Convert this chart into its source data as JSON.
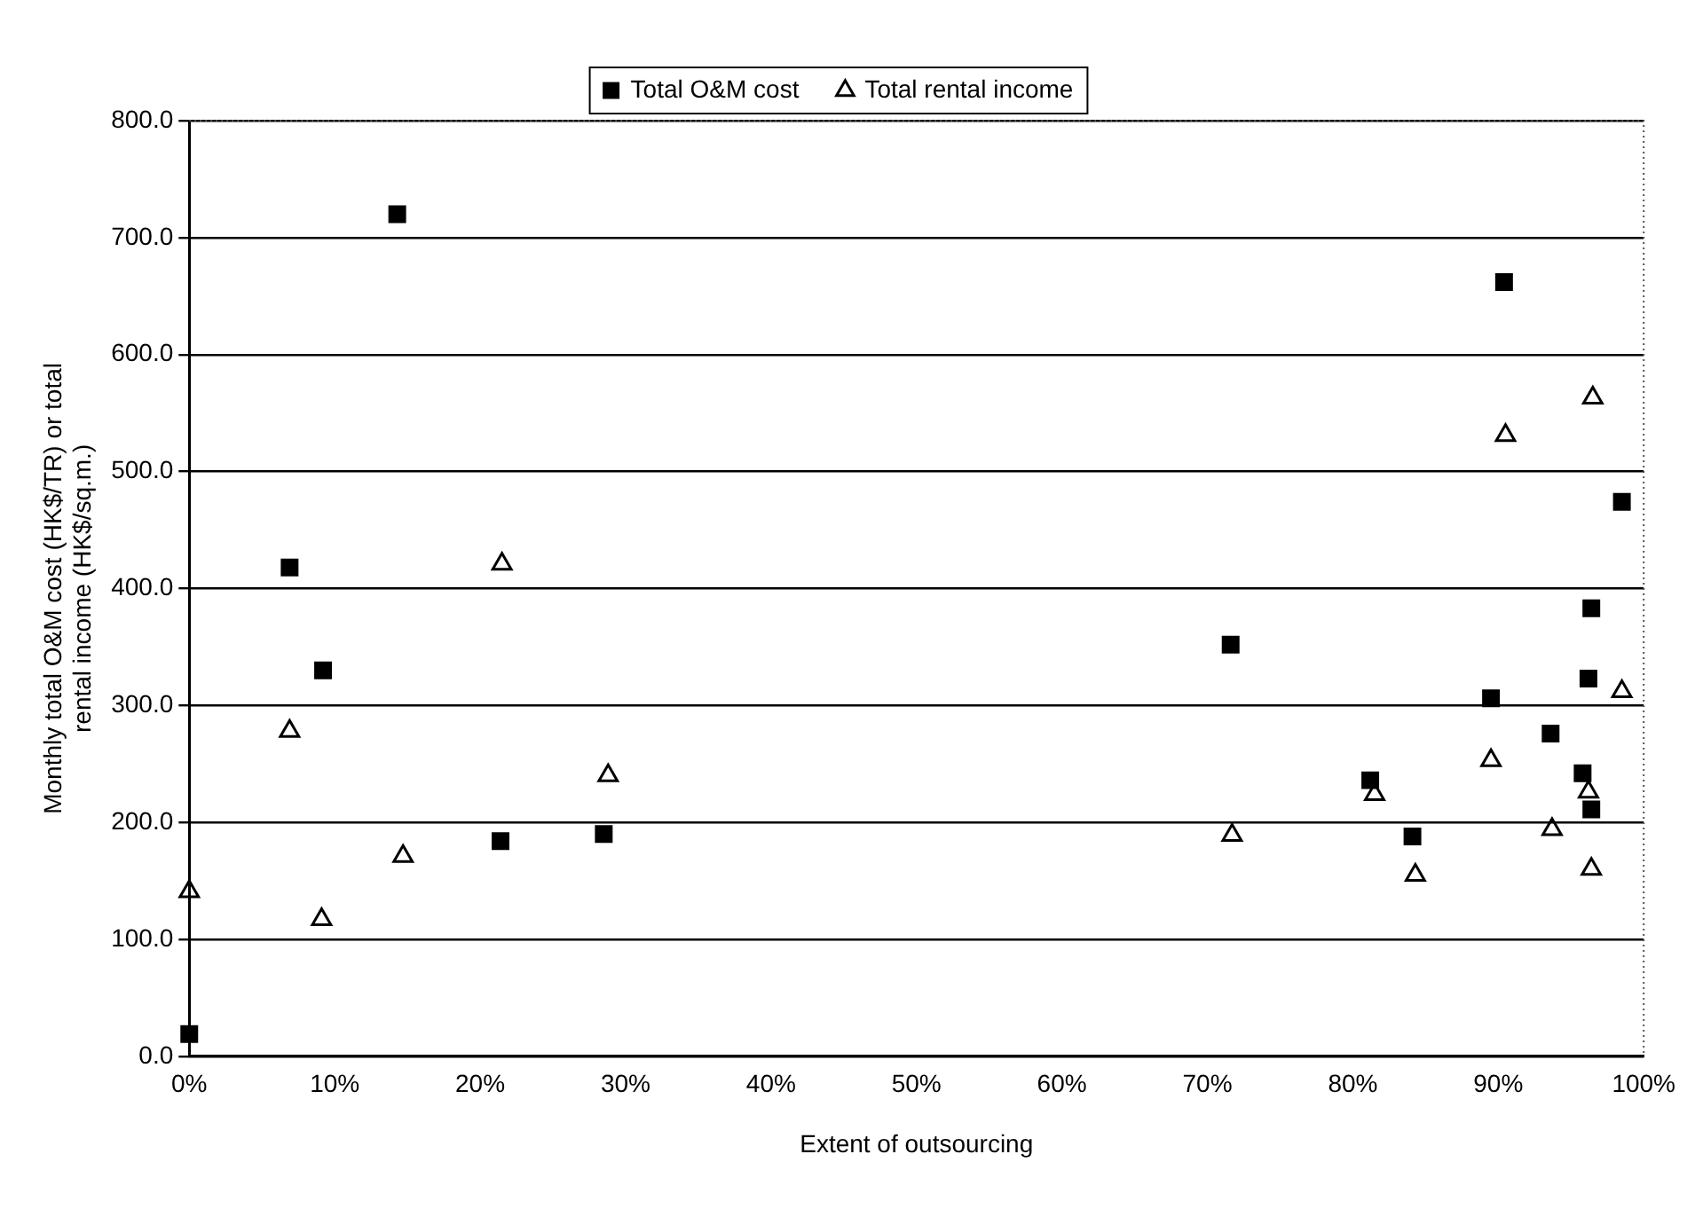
{
  "chart_data": {
    "type": "scatter",
    "xlabel": "Extent of outsourcing",
    "ylabel": "Monthly total O&M cost (HK$/TR) or total rental income (HK$/sq.m.)",
    "series": [
      {
        "name": "Total O&M cost",
        "color": "#000000",
        "marker": "square",
        "x": [
          0,
          6.9,
          9.2,
          14.3,
          21.4,
          28.5,
          71.6,
          81.2,
          84.1,
          89.5,
          90.4,
          93.6,
          95.8,
          96.2,
          96.4,
          96.4,
          98.5
        ],
        "values": [
          19,
          418,
          330,
          720,
          184,
          190,
          352,
          236,
          188,
          306,
          662,
          276,
          242,
          323,
          383,
          211,
          474
        ]
      },
      {
        "name": "Total rental income",
        "color": "#000000",
        "marker": "triangle",
        "x": [
          0,
          6.9,
          9.1,
          14.7,
          21.5,
          28.8,
          71.7,
          81.5,
          84.3,
          89.5,
          90.5,
          93.7,
          96.2,
          96.4,
          96.5,
          98.5
        ],
        "values": [
          141,
          278,
          117,
          171,
          421,
          240,
          189,
          224,
          155,
          253,
          531,
          194,
          226,
          160,
          563,
          312
        ]
      }
    ],
    "xlim": [
      0,
      100
    ],
    "xticks": [
      {
        "value": 0,
        "label": "0%"
      },
      {
        "value": 10,
        "label": "10%"
      },
      {
        "value": 20,
        "label": "20%"
      },
      {
        "value": 30,
        "label": "30%"
      },
      {
        "value": 40,
        "label": "40%"
      },
      {
        "value": 50,
        "label": "50%"
      },
      {
        "value": 60,
        "label": "60%"
      },
      {
        "value": 70,
        "label": "70%"
      },
      {
        "value": 80,
        "label": "80%"
      },
      {
        "value": 90,
        "label": "90%"
      },
      {
        "value": 100,
        "label": "100%"
      }
    ],
    "ylim": [
      0,
      800
    ],
    "yticks": [
      {
        "value": 0,
        "label": "0.0"
      },
      {
        "value": 100,
        "label": "100.0"
      },
      {
        "value": 200,
        "label": "200.0"
      },
      {
        "value": 300,
        "label": "300.0"
      },
      {
        "value": 400,
        "label": "400.0"
      },
      {
        "value": 500,
        "label": "500.0"
      },
      {
        "value": 600,
        "label": "600.0"
      },
      {
        "value": 700,
        "label": "700.0"
      },
      {
        "value": 800,
        "label": "800.0"
      }
    ],
    "grid": "y",
    "legend": "top"
  }
}
